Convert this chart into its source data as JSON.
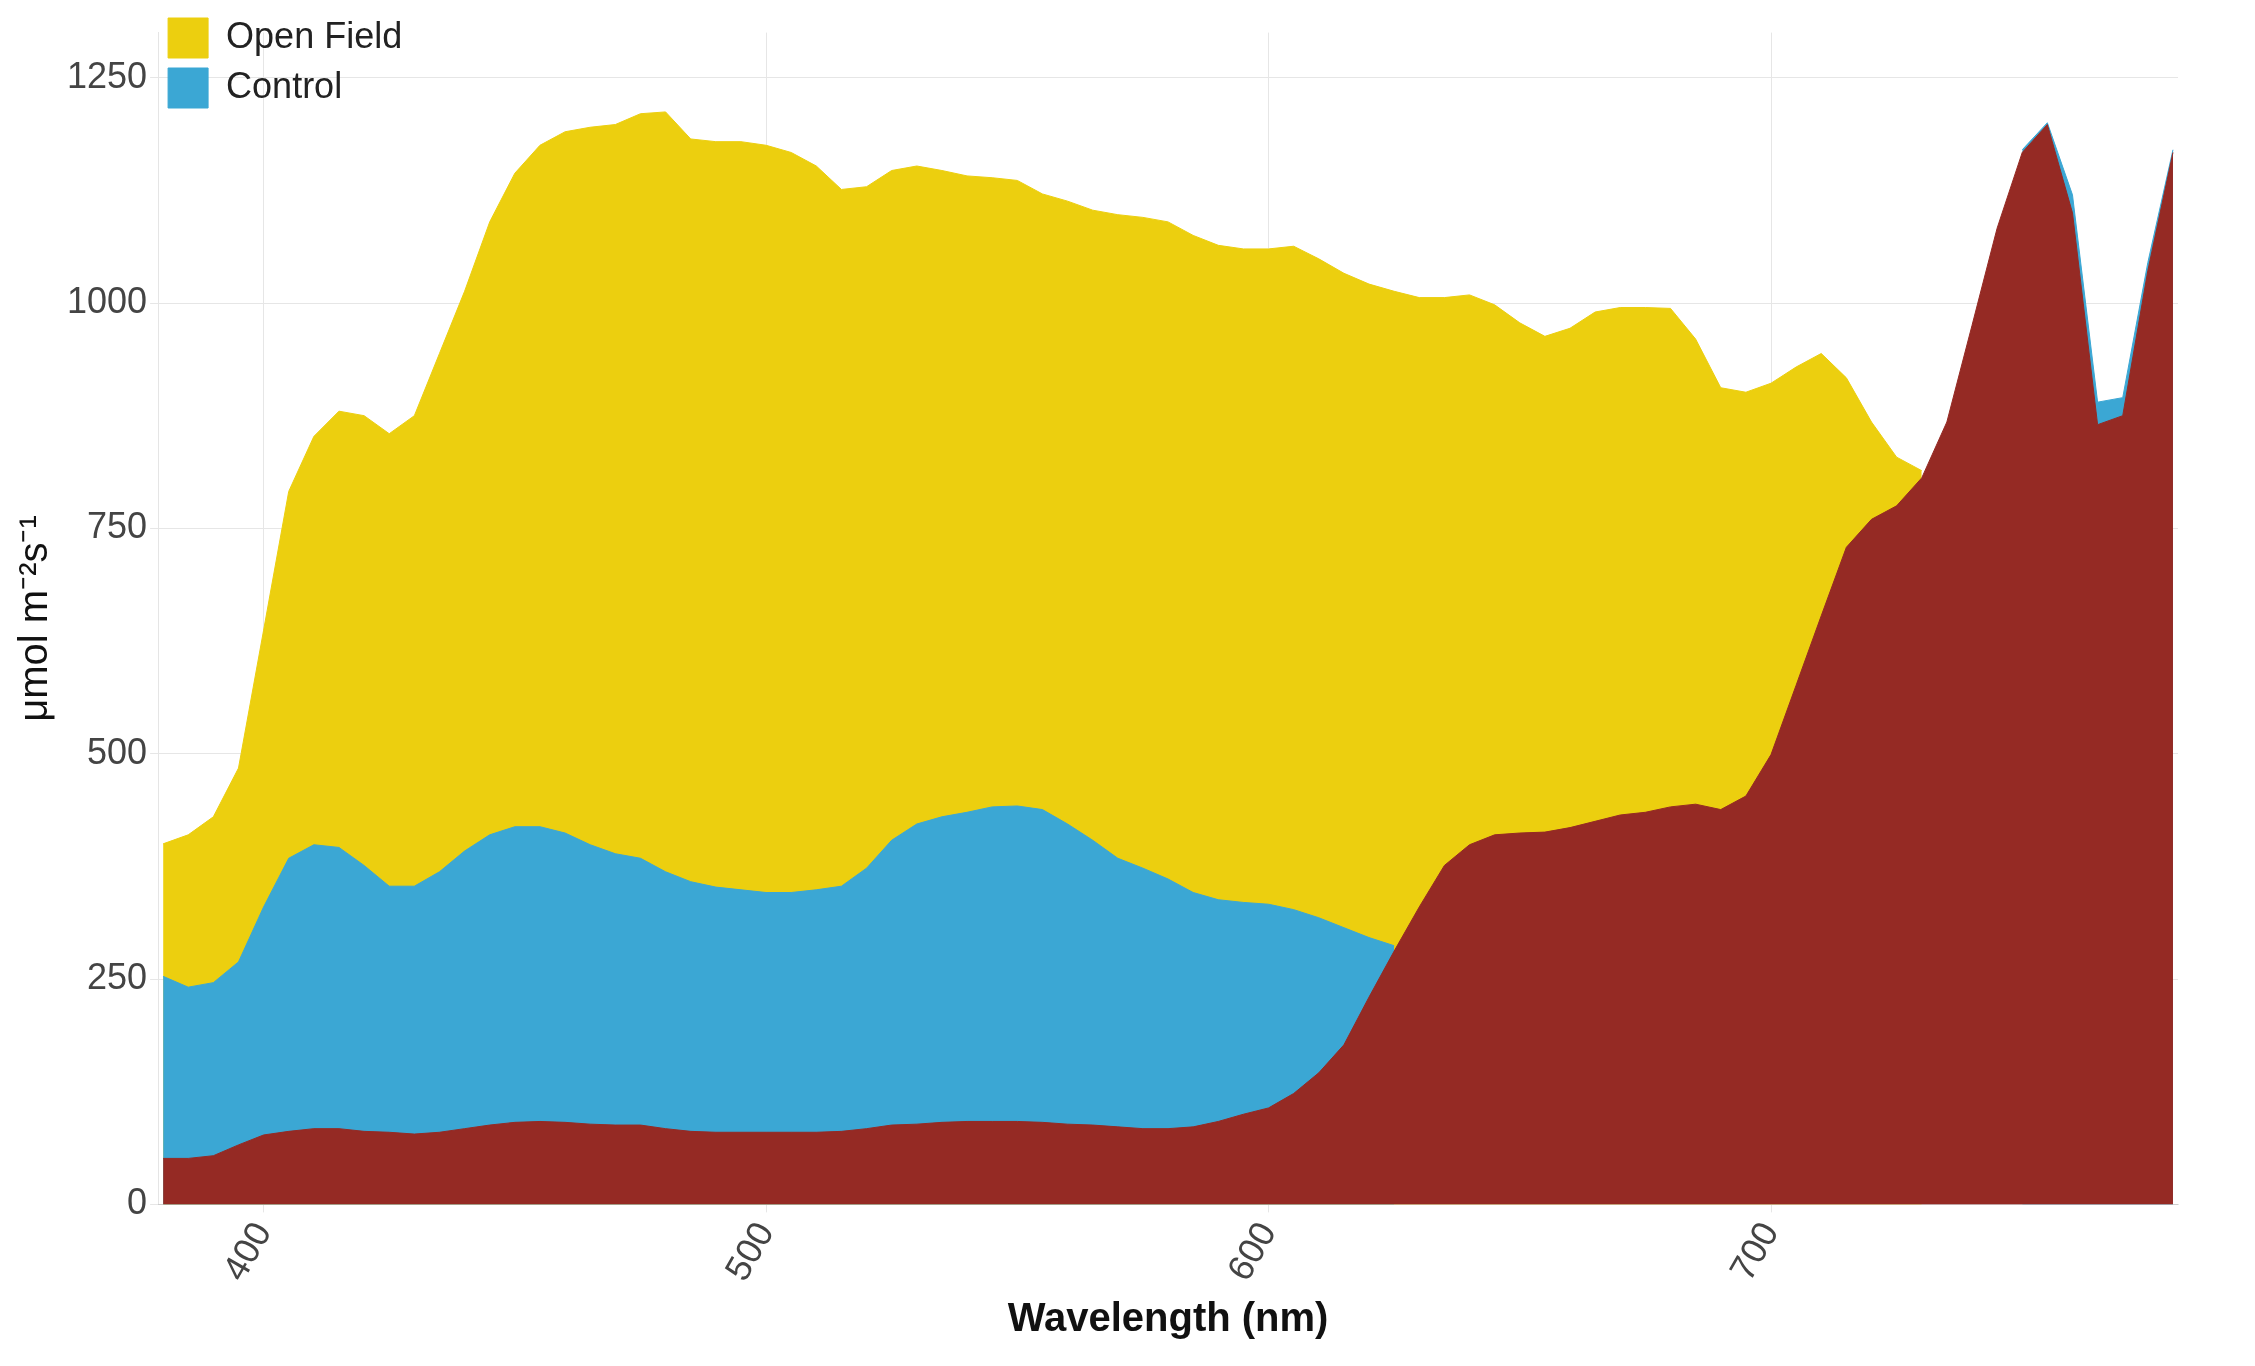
{
  "chart_data": {
    "type": "area",
    "xlabel": "Wavelength (nm)",
    "ylabel": "μmol m⁻²s⁻¹",
    "x": [
      380,
      385,
      390,
      395,
      400,
      405,
      410,
      415,
      420,
      425,
      430,
      435,
      440,
      445,
      450,
      455,
      460,
      465,
      470,
      475,
      480,
      485,
      490,
      495,
      500,
      505,
      510,
      515,
      520,
      525,
      530,
      535,
      540,
      545,
      550,
      555,
      560,
      565,
      570,
      575,
      580,
      585,
      590,
      595,
      600,
      605,
      610,
      615,
      620,
      625,
      630,
      635,
      640,
      645,
      650,
      655,
      660,
      665,
      670,
      675,
      680,
      685,
      690,
      695,
      700,
      705,
      710,
      715,
      720,
      725,
      730,
      735,
      740,
      745,
      750,
      755,
      760,
      765,
      770,
      775,
      780
    ],
    "series": [
      {
        "name": "Open Field",
        "color": "#eccf0f",
        "values": [
          400,
          410,
          430,
          484,
          637,
          791,
          852,
          880,
          875,
          855,
          875,
          944,
          1013,
          1090,
          1144,
          1175,
          1190,
          1195,
          1198,
          1210,
          1212,
          1182,
          1179,
          1179,
          1175,
          1167,
          1152,
          1126,
          1129,
          1147,
          1152,
          1147,
          1141,
          1139,
          1136,
          1121,
          1113,
          1103,
          1098,
          1095,
          1090,
          1075,
          1064,
          1060,
          1060,
          1063,
          1049,
          1033,
          1021,
          1013,
          1006,
          1006,
          1009,
          998,
          978,
          963,
          972,
          990,
          995,
          995,
          994,
          960,
          906,
          901,
          911,
          929,
          944,
          917,
          868,
          829,
          814,
          null,
          null,
          null,
          null,
          null,
          null,
          null,
          null,
          null,
          null
        ]
      },
      {
        "name": "Control",
        "color": "#3ba7d4",
        "values": [
          253,
          241,
          246,
          269,
          330,
          384,
          399,
          396,
          376,
          353,
          353,
          369,
          392,
          410,
          419,
          419,
          412,
          399,
          389,
          384,
          369,
          358,
          352,
          349,
          346,
          346,
          349,
          353,
          373,
          404,
          422,
          430,
          435,
          441,
          442,
          438,
          422,
          404,
          384,
          373,
          361,
          346,
          338,
          335,
          333,
          327,
          318,
          307,
          296,
          287,
          null,
          null,
          null,
          null,
          null,
          null,
          null,
          null,
          null,
          null,
          null,
          null,
          null,
          null,
          null,
          null,
          null,
          null,
          null,
          null,
          null,
          null,
          null,
          null,
          1170,
          1200,
          1120,
          890,
          895,
          1045,
          1170
        ]
      },
      {
        "color": "#952a24",
        "values": [
          51,
          51,
          54,
          66,
          77,
          81,
          84,
          84,
          81,
          80,
          78,
          80,
          84,
          88,
          91,
          92,
          91,
          89,
          88,
          88,
          84,
          81,
          80,
          80,
          80,
          80,
          80,
          81,
          84,
          88,
          89,
          91,
          92,
          92,
          92,
          91,
          89,
          88,
          86,
          84,
          84,
          86,
          92,
          100,
          107,
          123,
          146,
          177,
          230,
          281,
          330,
          376,
          399,
          410,
          412,
          413,
          418,
          425,
          432,
          435,
          441,
          444,
          438,
          453,
          499,
          576,
          653,
          729,
          760,
          775,
          806,
          868,
          975,
          1083,
          1167,
          1198,
          1100,
          865,
          875,
          1036,
          1167
        ]
      }
    ],
    "xlim": [
      379,
      781
    ],
    "xticks": [
      400,
      500,
      600,
      700
    ],
    "ylim": [
      0,
      1300
    ],
    "yticks": [
      0,
      250,
      500,
      750,
      1000,
      1250
    ],
    "grid": true,
    "legend": "top left",
    "marker": "none"
  }
}
